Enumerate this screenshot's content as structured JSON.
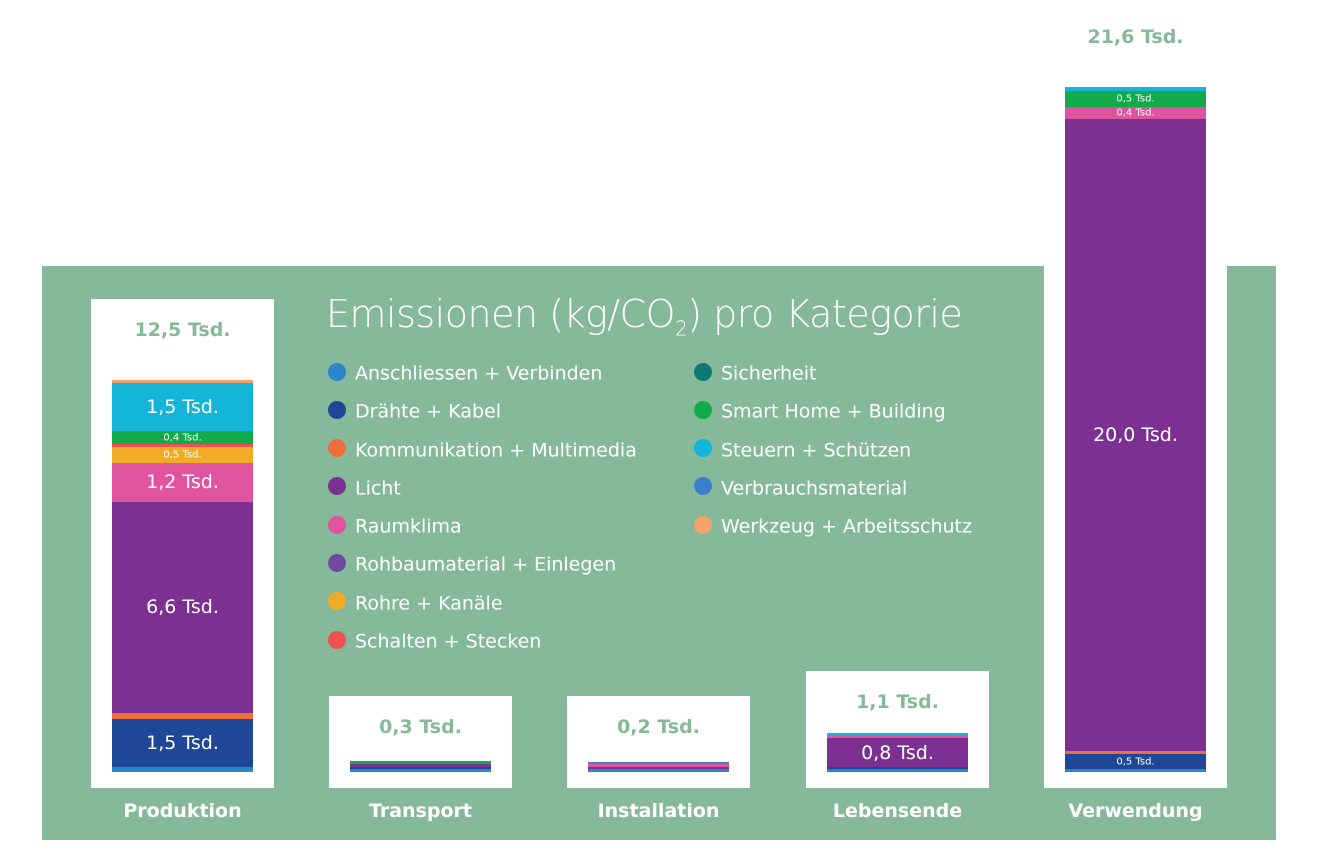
{
  "chart_data": {
    "type": "bar",
    "stacked": true,
    "title": "Emissionen (kg/CO₂) pro Kategorie",
    "title_main": "Emissionen (kg/CO",
    "title_sub": "2",
    "title_end": ") pro Kategorie",
    "legend_placement": "top",
    "grid": false,
    "unit": "Tsd.",
    "categories": [
      "Produktion",
      "Transport",
      "Installation",
      "Lebensende",
      "Verwendung"
    ],
    "totals": [
      {
        "value": 12.5,
        "label": "12,5 Tsd."
      },
      {
        "value": 0.3,
        "label": "0,3 Tsd."
      },
      {
        "value": 0.2,
        "label": "0,2 Tsd."
      },
      {
        "value": 1.1,
        "label": "1,1 Tsd."
      },
      {
        "value": 21.6,
        "label": "21,6 Tsd."
      }
    ],
    "series": [
      {
        "name": "Anschliessen + Verbinden",
        "color": "#2a86c8",
        "values": [
          0.15,
          0.04,
          0.03,
          0.03,
          0.03
        ]
      },
      {
        "name": "Drähte + Kabel",
        "color": "#1e4797",
        "values": [
          1.5,
          0.08,
          0.0,
          0.06,
          0.5
        ],
        "labels": [
          "1,5 Tsd.",
          "",
          "",
          "",
          "0,5 Tsd."
        ]
      },
      {
        "name": "Kommunikation + Multimedia",
        "color": "#ef6e3c",
        "values": [
          0.2,
          0.0,
          0.0,
          0.0,
          0.07
        ]
      },
      {
        "name": "Licht",
        "color": "#7c3192",
        "values": [
          6.6,
          0.08,
          0.07,
          0.8,
          20.0
        ],
        "labels": [
          "6,6 Tsd.",
          "",
          "",
          "0,8 Tsd.",
          "20,0 Tsd."
        ]
      },
      {
        "name": "Raumklima",
        "color": "#e0549f",
        "values": [
          1.2,
          0.0,
          0.03,
          0.03,
          0.4
        ],
        "labels": [
          "1,2 Tsd.",
          "",
          "",
          "",
          "0,4 Tsd."
        ]
      },
      {
        "name": "Rohbaumaterial + Einlegen",
        "color": "#6f4aa0",
        "values": [
          0.0,
          0.0,
          0.0,
          0.0,
          0.0
        ]
      },
      {
        "name": "Rohre + Kanäle",
        "color": "#f0ac27",
        "values": [
          0.5,
          0.0,
          0.0,
          0.0,
          0.0
        ],
        "labels": [
          "0,5 Tsd.",
          "",
          "",
          "",
          ""
        ]
      },
      {
        "name": "Schalten + Stecken",
        "color": "#ee5351",
        "values": [
          0.1,
          0.0,
          0.0,
          0.0,
          0.0
        ]
      },
      {
        "name": "Sicherheit",
        "color": "#0c7a73",
        "values": [
          0.0,
          0.0,
          0.0,
          0.0,
          0.0
        ]
      },
      {
        "name": "Smart Home + Building",
        "color": "#12ab4c",
        "values": [
          0.4,
          0.04,
          0.0,
          0.0,
          0.5
        ],
        "labels": [
          "0,4 Tsd.",
          "",
          "",
          "",
          "0,5 Tsd."
        ]
      },
      {
        "name": "Steuern + Schützen",
        "color": "#15b5d9",
        "values": [
          1.5,
          0.0,
          0.0,
          0.06,
          0.12
        ],
        "labels": [
          "1,5 Tsd.",
          "",
          "",
          "",
          ""
        ]
      },
      {
        "name": "Verbrauchsmaterial",
        "color": "#3a7fcc",
        "values": [
          0.0,
          0.0,
          0.03,
          0.0,
          0.0
        ]
      },
      {
        "name": "Werkzeug + Arbeitsschutz",
        "color": "#f4a46a",
        "values": [
          0.1,
          0.0,
          0.0,
          0.0,
          0.0
        ]
      }
    ],
    "legend_columns": [
      [
        "Anschliessen + Verbinden",
        "Drähte + Kabel",
        "Kommunikation + Multimedia",
        "Licht",
        "Raumklima",
        "Rohbaumaterial + Einlegen",
        "Rohre + Kanäle",
        "Schalten + Stecken"
      ],
      [
        "Sicherheit",
        "Smart Home + Building",
        "Steuern + Schützen",
        "Verbrauchsmaterial",
        "Werkzeug + Arbeitsschutz"
      ]
    ],
    "colors": {
      "panel": "#86b99a",
      "total_text": "#86b99a",
      "card": "#ffffff"
    }
  }
}
